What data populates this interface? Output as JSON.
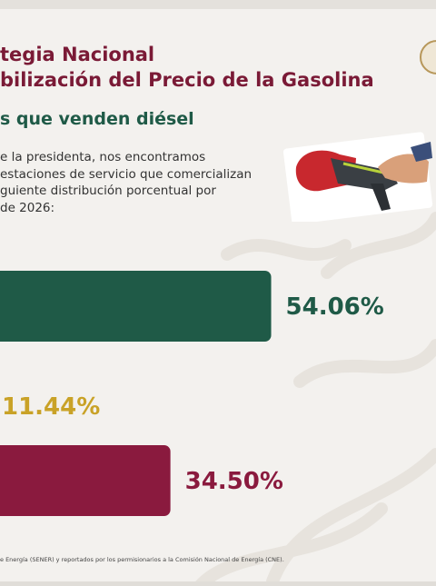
{
  "header": {
    "title_line1": "tegia Nacional",
    "title_line2": "bilización del Precio de la Gasolina",
    "subtitle": "s que venden diésel"
  },
  "body": {
    "lines": [
      "e la presidenta, nos encontramos",
      "estaciones de servicio que comercializan",
      "guiente distribución porcentual por",
      "de 2026:"
    ]
  },
  "footer": {
    "source": "e Energía (SENER) y reportados por los permisionarios a la Comisión Nacional de Energía (CNE)."
  },
  "icons": {
    "seal": "seal-icon",
    "photo": "fuel-nozzle-photo"
  },
  "colors": {
    "title": "#7a1a36",
    "subtitle": "#1f5a47",
    "green": "#1f5a47",
    "gold": "#c9a227",
    "maroon": "#8a1a3e"
  },
  "chart_data": {
    "type": "bar",
    "orientation": "horizontal",
    "values": [
      54.06,
      11.44,
      34.5
    ],
    "labels": [
      "54.06%",
      "11.44%",
      "34.50%"
    ],
    "colors": [
      "#1f5a47",
      "#c9a227",
      "#8a1a3e"
    ]
  }
}
